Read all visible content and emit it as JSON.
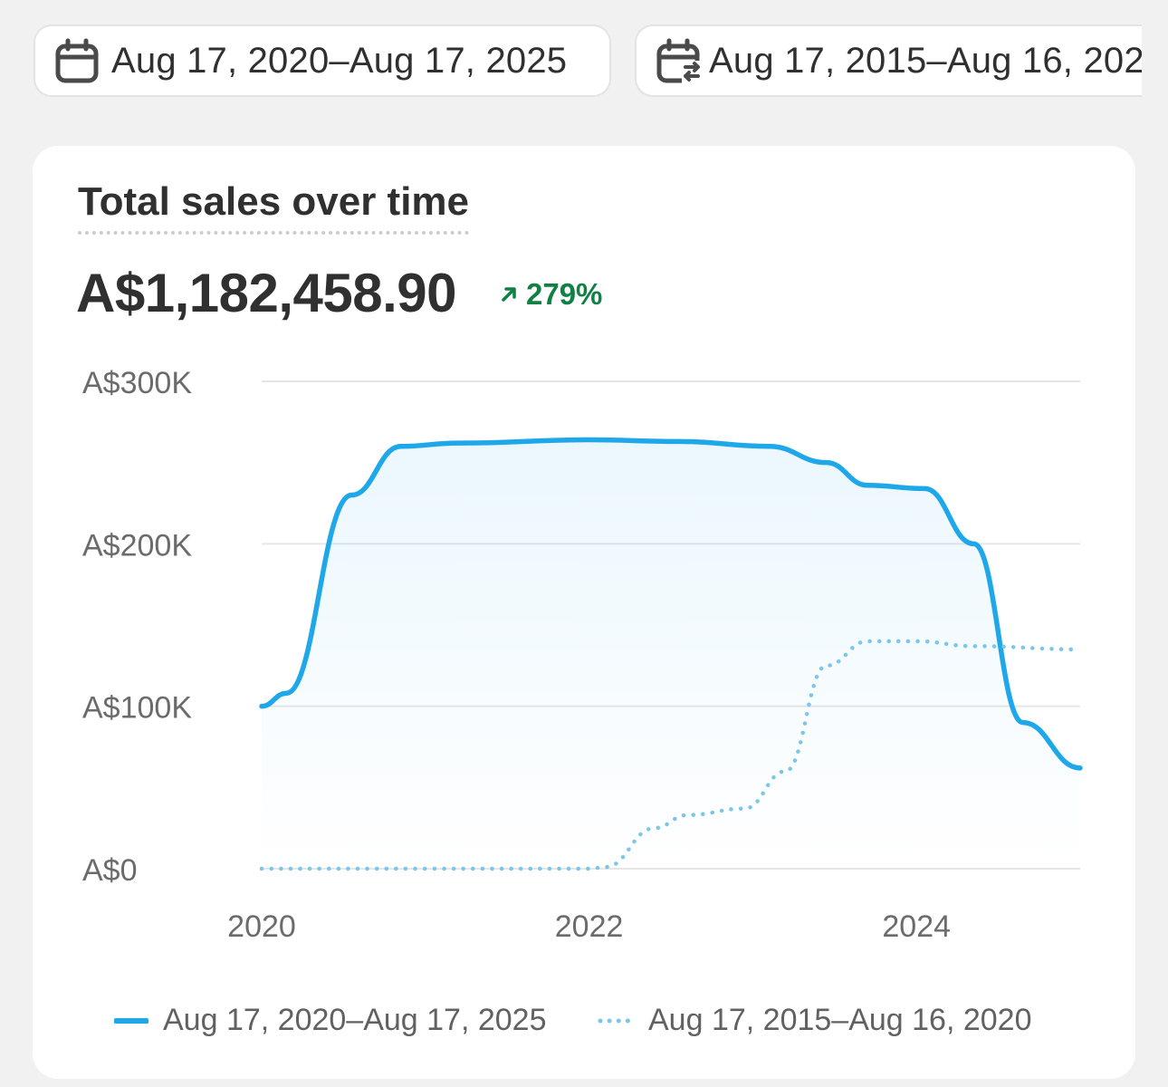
{
  "date_range": {
    "primary_label": "Aug 17, 2020–Aug 17, 2025",
    "primary_icon": "calendar-icon",
    "comparison_label": "Aug 17, 2015–Aug 16, 2020",
    "comparison_icon": "calendar-compare-icon"
  },
  "card": {
    "title": "Total sales over time",
    "total": "A$1,182,458.90",
    "change": "279%",
    "change_icon": "arrow-up-right-icon",
    "change_color": "#108043"
  },
  "chart_data": {
    "type": "line",
    "title": "Total sales over time",
    "ylim": [
      0,
      300000
    ],
    "y_ticks": [
      "A$0",
      "A$100K",
      "A$200K",
      "A$300K"
    ],
    "x_ticks": [
      "2020",
      "2022",
      "2024"
    ],
    "grid": true,
    "legend_position": "bottom",
    "series": [
      {
        "name": "Aug 17, 2020–Aug 17, 2025",
        "style": "solid",
        "color": "#1ea8ea",
        "fill": true,
        "x": [
          2020.0,
          2021.0,
          2022.0,
          2023.0,
          2024.0,
          2025.0
        ],
        "values": [
          100000,
          262000,
          264000,
          260000,
          234000,
          62000
        ]
      },
      {
        "name": "Aug 17, 2015–Aug 16, 2020",
        "style": "dotted",
        "color": "#7cc6e8",
        "fill": false,
        "x": [
          2020.0,
          2021.0,
          2022.0,
          2023.0,
          2024.0,
          2025.0
        ],
        "values": [
          0,
          0,
          0,
          36000,
          141000,
          135000
        ]
      }
    ]
  }
}
